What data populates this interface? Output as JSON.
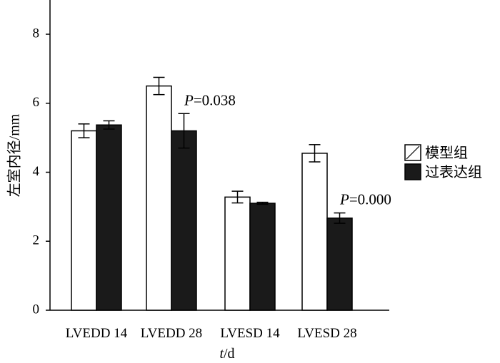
{
  "chart_data": {
    "type": "bar",
    "categories": [
      "LVEDD 14",
      "LVEDD 28",
      "LVESD 14",
      "LVESD 28"
    ],
    "series": [
      {
        "name": "模型组",
        "values": [
          5.2,
          6.5,
          3.28,
          4.55
        ],
        "errors": [
          0.2,
          0.25,
          0.17,
          0.25
        ],
        "color": "#ffffff"
      },
      {
        "name": "过表达组",
        "values": [
          5.37,
          5.2,
          3.1,
          2.67
        ],
        "errors": [
          0.12,
          0.5,
          0.03,
          0.15
        ],
        "color": "#1a1a1a"
      }
    ],
    "ylim": [
      0,
      8
    ],
    "yticks": [
      "0",
      "2",
      "4",
      "6",
      "8"
    ],
    "ylabel": "左室内径/mm",
    "xlabel_italic": "t",
    "xlabel_rest": "/d",
    "annotations": [
      {
        "category_index": 1,
        "p_letter": "P",
        "text": "=0.038"
      },
      {
        "category_index": 3,
        "p_letter": "P",
        "text": "=0.000"
      }
    ],
    "legend_position": "right"
  }
}
